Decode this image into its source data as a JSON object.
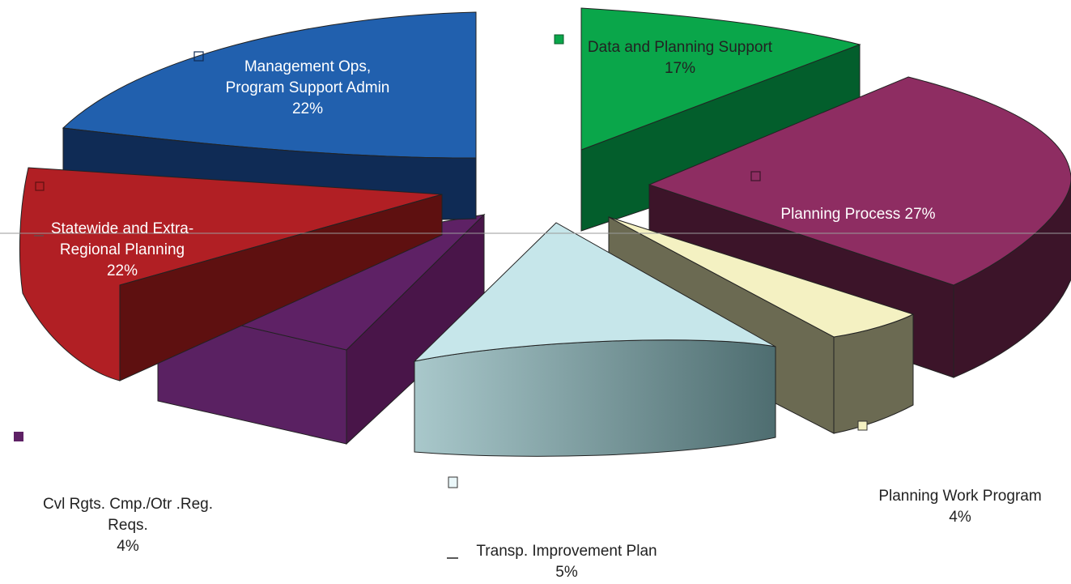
{
  "chart_data": {
    "type": "pie",
    "style": "3d-exploded",
    "title": "",
    "slices": [
      {
        "label_lines": [
          "Data and Planning Support",
          "17%"
        ],
        "value": 17,
        "color": "#0aa64a"
      },
      {
        "label_lines": [
          "Planning Process  27%"
        ],
        "value": 27,
        "color": "#8e2d62"
      },
      {
        "label_lines": [
          "Planning Work Program",
          "4%"
        ],
        "value": 4,
        "color": "#f4f1c2"
      },
      {
        "label_lines": [
          "Transp. Improvement Plan",
          "5%"
        ],
        "value": 5,
        "color": "#c6e6ea"
      },
      {
        "label_lines": [
          "Cvl Rgts. Cmp./Otr .Reg.",
          "Reqs.",
          "4%"
        ],
        "value": 4,
        "color": "#5e2165"
      },
      {
        "label_lines": [
          "Statewide and Extra-",
          "Regional Planning",
          "22%"
        ],
        "value": 22,
        "color": "#b11f24"
      },
      {
        "label_lines": [
          "Management  Ops,",
          "Program Support Admin",
          "22%"
        ],
        "value": 22,
        "color": "#2160ae"
      }
    ]
  }
}
